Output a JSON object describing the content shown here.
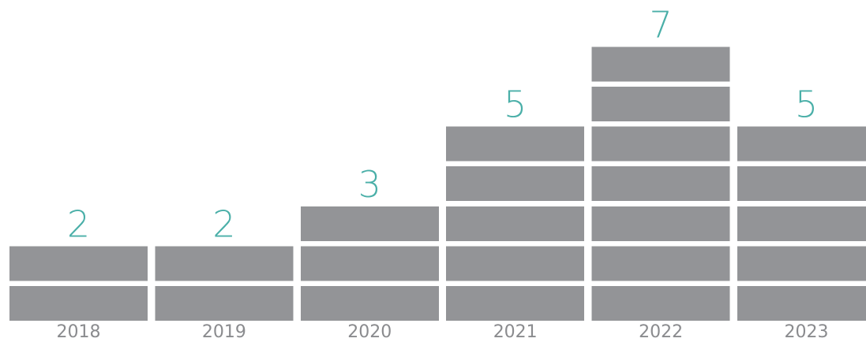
{
  "chart_data": {
    "type": "bar",
    "categories": [
      "2018",
      "2019",
      "2020",
      "2021",
      "2022",
      "2023"
    ],
    "values": [
      2,
      2,
      3,
      5,
      7,
      5
    ],
    "value_labels": [
      "2",
      "2",
      "3",
      "5",
      "7",
      "5"
    ],
    "title": "",
    "xlabel": "",
    "ylabel": "",
    "ylim": [
      0,
      7
    ],
    "grid": false,
    "legend": "none",
    "style": "stacked unit blocks, one block per count"
  },
  "colors": {
    "block": "#939497",
    "value_label": "#4aafa8",
    "tick_label": "#8a8b8e",
    "background": "#ffffff"
  }
}
